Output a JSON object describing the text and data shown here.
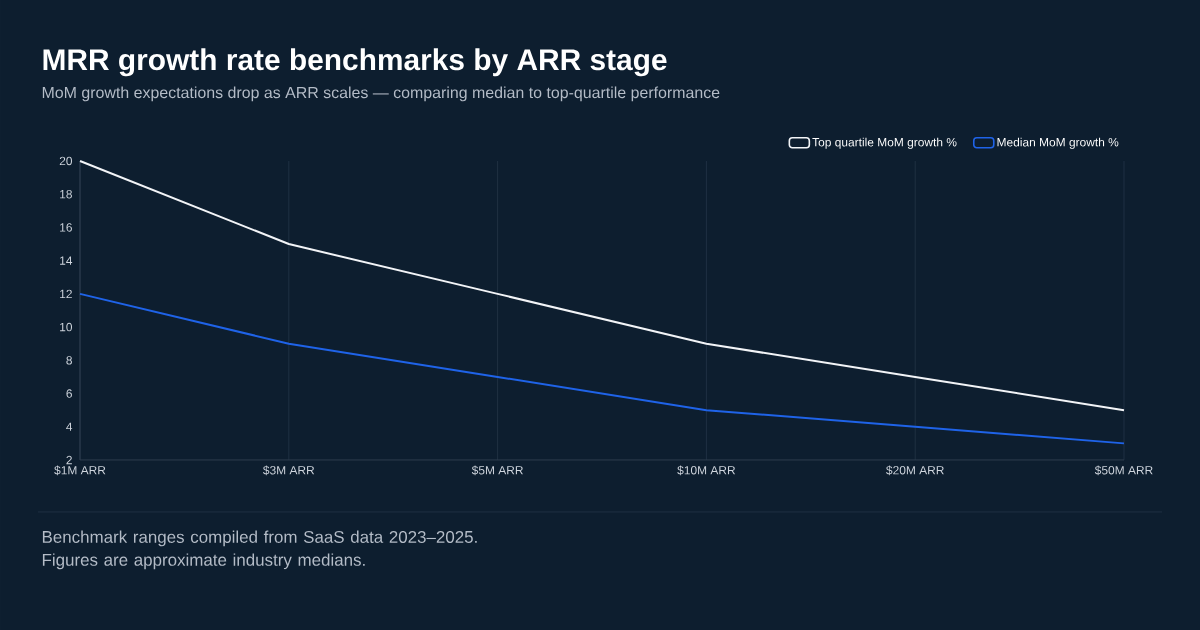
{
  "chart_data": {
    "type": "line",
    "title": "MRR growth rate benchmarks by ARR stage",
    "subtitle": "MoM growth expectations drop as ARR scales — comparing median to top-quartile performance",
    "categories": [
      "$1M ARR",
      "$3M ARR",
      "$5M ARR",
      "$10M ARR",
      "$20M ARR",
      "$50M ARR"
    ],
    "series": [
      {
        "name": "Top quartile MoM growth %",
        "color": "#f2f4f7",
        "values": [
          20,
          15,
          12,
          9,
          7,
          5
        ]
      },
      {
        "name": "Median MoM growth %",
        "color": "#1f63e8",
        "values": [
          12,
          9,
          7,
          5,
          4,
          3
        ]
      }
    ],
    "ylim": [
      2,
      20
    ],
    "yticks": [
      2,
      4,
      6,
      8,
      10,
      12,
      14,
      16,
      18,
      20
    ],
    "grid": "x",
    "legend": "top right",
    "annotations": [
      "Benchmark ranges compiled from SaaS data 2023–2025. Figures are approximate industry medians."
    ]
  }
}
